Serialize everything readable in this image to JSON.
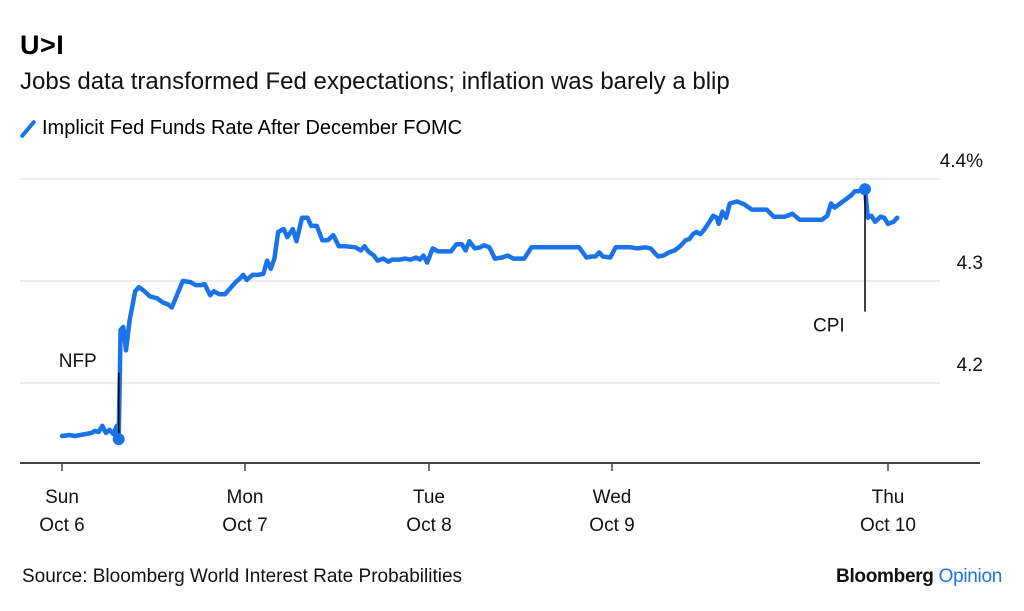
{
  "header": {
    "title": "U>I",
    "subtitle": "Jobs data transformed Fed expectations; inflation was barely a blip"
  },
  "footer": {
    "source": "Source: Bloomberg World Interest Rate Probabilities",
    "brand_primary": "Bloomberg",
    "brand_secondary": "Opinion"
  },
  "colors": {
    "series": "#1a73e8",
    "grid": "#e6e6e6",
    "axis": "#444444",
    "annotation": "#000000"
  },
  "chart_data": {
    "type": "line",
    "title": "U>I",
    "subtitle": "Jobs data transformed Fed expectations; inflation was barely a blip",
    "xlabel": "",
    "ylabel": "",
    "ylim": [
      4.12,
      4.42
    ],
    "y_ticks": [
      {
        "value": 4.4,
        "label": "4.4%"
      },
      {
        "value": 4.3,
        "label": "4.3"
      },
      {
        "value": 4.2,
        "label": "4.2"
      }
    ],
    "grid": true,
    "legend_position": "top-left",
    "x_ticks": [
      {
        "pos": 0,
        "line1": "Sun",
        "line2": "Oct 6"
      },
      {
        "pos": 1,
        "line1": "Mon",
        "line2": "Oct 7"
      },
      {
        "pos": 2,
        "line1": "Tue",
        "line2": "Oct 8"
      },
      {
        "pos": 3,
        "line1": "Wed",
        "line2": "Oct 9"
      },
      {
        "pos": 4.5,
        "line1": "Thu",
        "line2": "Oct 10"
      }
    ],
    "xlim": [
      -0.23,
      4.87
    ],
    "series": [
      {
        "name": "Implicit Fed Funds Rate After December FOMC",
        "points": [
          [
            0.0,
            4.148
          ],
          [
            0.04,
            4.149
          ],
          [
            0.07,
            4.148
          ],
          [
            0.1,
            4.149
          ],
          [
            0.13,
            4.15
          ],
          [
            0.16,
            4.151
          ],
          [
            0.18,
            4.153
          ],
          [
            0.2,
            4.152
          ],
          [
            0.22,
            4.158
          ],
          [
            0.24,
            4.151
          ],
          [
            0.26,
            4.154
          ],
          [
            0.28,
            4.15
          ],
          [
            0.3,
            4.158
          ],
          [
            0.31,
            4.145
          ],
          [
            0.32,
            4.252
          ],
          [
            0.335,
            4.255
          ],
          [
            0.35,
            4.232
          ],
          [
            0.37,
            4.262
          ],
          [
            0.4,
            4.29
          ],
          [
            0.42,
            4.294
          ],
          [
            0.45,
            4.29
          ],
          [
            0.48,
            4.285
          ],
          [
            0.52,
            4.283
          ],
          [
            0.55,
            4.279
          ],
          [
            0.58,
            4.277
          ],
          [
            0.6,
            4.274
          ],
          [
            0.63,
            4.287
          ],
          [
            0.66,
            4.3
          ],
          [
            0.7,
            4.299
          ],
          [
            0.73,
            4.296
          ],
          [
            0.76,
            4.296
          ],
          [
            0.78,
            4.297
          ],
          [
            0.81,
            4.286
          ],
          [
            0.83,
            4.29
          ],
          [
            0.86,
            4.287
          ],
          [
            0.89,
            4.287
          ],
          [
            0.92,
            4.293
          ],
          [
            0.95,
            4.299
          ],
          [
            0.97,
            4.302
          ],
          [
            0.99,
            4.306
          ],
          [
            1.01,
            4.301
          ],
          [
            1.04,
            4.306
          ],
          [
            1.07,
            4.306
          ],
          [
            1.1,
            4.307
          ],
          [
            1.12,
            4.32
          ],
          [
            1.14,
            4.312
          ],
          [
            1.16,
            4.322
          ],
          [
            1.18,
            4.348
          ],
          [
            1.21,
            4.351
          ],
          [
            1.23,
            4.343
          ],
          [
            1.26,
            4.351
          ],
          [
            1.28,
            4.339
          ],
          [
            1.31,
            4.362
          ],
          [
            1.34,
            4.362
          ],
          [
            1.36,
            4.354
          ],
          [
            1.39,
            4.354
          ],
          [
            1.42,
            4.34
          ],
          [
            1.45,
            4.34
          ],
          [
            1.48,
            4.345
          ],
          [
            1.51,
            4.334
          ],
          [
            1.55,
            4.334
          ],
          [
            1.6,
            4.333
          ],
          [
            1.63,
            4.33
          ],
          [
            1.65,
            4.334
          ],
          [
            1.67,
            4.329
          ],
          [
            1.7,
            4.325
          ],
          [
            1.72,
            4.32
          ],
          [
            1.75,
            4.322
          ],
          [
            1.78,
            4.319
          ],
          [
            1.8,
            4.321
          ],
          [
            1.84,
            4.321
          ],
          [
            1.87,
            4.322
          ],
          [
            1.9,
            4.321
          ],
          [
            1.93,
            4.323
          ],
          [
            1.95,
            4.321
          ],
          [
            1.97,
            4.325
          ],
          [
            1.99,
            4.318
          ],
          [
            2.02,
            4.332
          ],
          [
            2.05,
            4.329
          ],
          [
            2.08,
            4.329
          ],
          [
            2.12,
            4.329
          ],
          [
            2.15,
            4.336
          ],
          [
            2.18,
            4.336
          ],
          [
            2.2,
            4.33
          ],
          [
            2.22,
            4.339
          ],
          [
            2.25,
            4.332
          ],
          [
            2.28,
            4.333
          ],
          [
            2.3,
            4.335
          ],
          [
            2.33,
            4.333
          ],
          [
            2.36,
            4.322
          ],
          [
            2.4,
            4.323
          ],
          [
            2.43,
            4.325
          ],
          [
            2.46,
            4.322
          ],
          [
            2.52,
            4.322
          ],
          [
            2.56,
            4.333
          ],
          [
            2.66,
            4.333
          ],
          [
            2.76,
            4.333
          ],
          [
            2.82,
            4.333
          ],
          [
            2.86,
            4.323
          ],
          [
            2.89,
            4.324
          ],
          [
            2.91,
            4.324
          ],
          [
            2.93,
            4.328
          ],
          [
            2.95,
            4.324
          ],
          [
            2.99,
            4.323
          ],
          [
            3.02,
            4.333
          ],
          [
            3.1,
            4.333
          ],
          [
            3.14,
            4.332
          ],
          [
            3.18,
            4.333
          ],
          [
            3.21,
            4.332
          ],
          [
            3.25,
            4.324
          ],
          [
            3.28,
            4.325
          ],
          [
            3.31,
            4.328
          ],
          [
            3.34,
            4.33
          ],
          [
            3.37,
            4.334
          ],
          [
            3.4,
            4.34
          ],
          [
            3.42,
            4.341
          ],
          [
            3.44,
            4.346
          ],
          [
            3.46,
            4.348
          ],
          [
            3.48,
            4.346
          ],
          [
            3.5,
            4.35
          ],
          [
            3.53,
            4.358
          ],
          [
            3.55,
            4.364
          ],
          [
            3.57,
            4.362
          ],
          [
            3.58,
            4.356
          ],
          [
            3.6,
            4.368
          ],
          [
            3.62,
            4.362
          ],
          [
            3.64,
            4.376
          ],
          [
            3.68,
            4.378
          ],
          [
            3.72,
            4.375
          ],
          [
            3.76,
            4.37
          ],
          [
            3.8,
            4.37
          ],
          [
            3.84,
            4.37
          ],
          [
            3.88,
            4.363
          ],
          [
            3.94,
            4.363
          ],
          [
            3.98,
            4.366
          ],
          [
            4.02,
            4.36
          ],
          [
            4.1,
            4.36
          ],
          [
            4.14,
            4.36
          ],
          [
            4.17,
            4.364
          ],
          [
            4.19,
            4.376
          ],
          [
            4.21,
            4.372
          ],
          [
            4.24,
            4.376
          ],
          [
            4.27,
            4.38
          ],
          [
            4.3,
            4.384
          ],
          [
            4.32,
            4.388
          ],
          [
            4.34,
            4.388
          ],
          [
            4.36,
            4.39
          ],
          [
            4.375,
            4.39
          ],
          [
            4.39,
            4.362
          ],
          [
            4.41,
            4.364
          ],
          [
            4.43,
            4.358
          ],
          [
            4.46,
            4.363
          ],
          [
            4.48,
            4.362
          ],
          [
            4.5,
            4.356
          ],
          [
            4.53,
            4.358
          ],
          [
            4.55,
            4.362
          ]
        ]
      }
    ],
    "annotations": [
      {
        "label": "NFP",
        "pos": 0.31,
        "value": 4.145,
        "label_value": 4.21,
        "label_side": "left-above"
      },
      {
        "label": "CPI",
        "pos": 4.375,
        "value": 4.39,
        "label_value": 4.27,
        "label_side": "left-below"
      }
    ]
  }
}
